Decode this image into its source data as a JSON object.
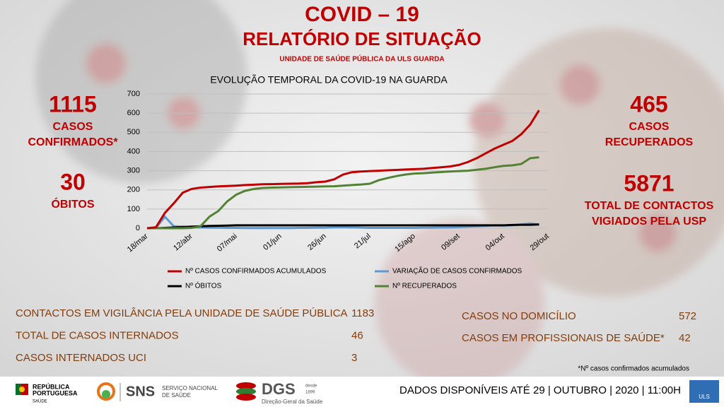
{
  "header": {
    "title": "COVID – 19",
    "subtitle": "RELATÓRIO DE SITUAÇÃO",
    "unit": "UNIDADE DE SAÚDE PÚBLICA DA ULS GUARDA"
  },
  "left_stats": [
    {
      "value": 1115,
      "lines": [
        "CASOS",
        "CONFIRMADOS*"
      ]
    },
    {
      "value": 30,
      "lines": [
        "ÓBITOS"
      ]
    }
  ],
  "right_stats": [
    {
      "value": 465,
      "lines": [
        "CASOS",
        "RECUPERADOS"
      ]
    },
    {
      "value": 5871,
      "lines": [
        "TOTAL DE CONTACTOS",
        "VIGIADOS PELA USP"
      ]
    }
  ],
  "chart_data": {
    "type": "line",
    "title": "EVOLUÇÃO TEMPORAL DA COVID-19 NA GUARDA",
    "x": [
      "18/mar",
      null,
      null,
      null,
      null,
      "12/abr",
      null,
      null,
      null,
      null,
      "07/mai",
      null,
      null,
      null,
      null,
      "01/jun",
      null,
      null,
      null,
      null,
      "26/jun",
      null,
      null,
      null,
      null,
      "21/jul",
      null,
      null,
      null,
      null,
      "15/ago",
      null,
      null,
      null,
      null,
      "09/set",
      null,
      null,
      null,
      null,
      "04/out",
      null,
      null,
      null,
      null,
      "29/out"
    ],
    "ylim": [
      0,
      700
    ],
    "yticks": [
      0,
      100,
      200,
      300,
      400,
      500,
      600,
      700
    ],
    "grid": true,
    "series": [
      {
        "name": "Nº CASOS CONFIRMADOS ACUMULADOS",
        "color": "#c00000",
        "values": [
          0,
          5,
          80,
          130,
          185,
          205,
          212,
          215,
          218,
          220,
          222,
          225,
          227,
          229,
          230,
          231,
          232,
          233,
          235,
          240,
          243,
          255,
          280,
          292,
          296,
          298,
          300,
          302,
          304,
          306,
          308,
          310,
          314,
          318,
          322,
          330,
          345,
          365,
          390,
          415,
          435,
          455,
          490,
          540,
          615,
          null
        ]
      },
      {
        "name": "VARIAÇÃO DE CASOS CONFIRMADOS",
        "color": "#5b9bd5",
        "values": [
          0,
          2,
          60,
          10,
          8,
          5,
          4,
          3,
          3,
          2,
          2,
          1,
          1,
          1,
          1,
          1,
          1,
          2,
          2,
          3,
          3,
          5,
          6,
          4,
          3,
          2,
          2,
          2,
          2,
          2,
          2,
          3,
          3,
          4,
          4,
          6,
          8,
          10,
          12,
          15,
          14,
          15,
          20,
          25,
          18,
          null
        ]
      },
      {
        "name": "Nº ÓBITOS",
        "color": "#000000",
        "values": [
          0,
          0,
          2,
          4,
          6,
          8,
          10,
          12,
          13,
          14,
          15,
          15,
          15,
          15,
          15,
          15,
          15,
          15,
          15,
          15,
          15,
          15,
          15,
          15,
          15,
          15,
          15,
          15,
          15,
          15,
          15,
          15,
          15,
          15,
          15,
          15,
          15,
          15,
          15,
          15,
          15,
          17,
          18,
          18,
          20,
          null
        ]
      },
      {
        "name": "Nº RECUPERADOS",
        "color": "#548235",
        "values": [
          0,
          0,
          0,
          0,
          0,
          2,
          10,
          60,
          90,
          140,
          175,
          195,
          205,
          210,
          212,
          213,
          214,
          215,
          216,
          217,
          218,
          219,
          222,
          225,
          228,
          232,
          250,
          262,
          272,
          280,
          285,
          287,
          290,
          293,
          296,
          298,
          300,
          305,
          310,
          318,
          325,
          328,
          335,
          365,
          370,
          null
        ]
      }
    ]
  },
  "table": {
    "left": [
      [
        "CONTACTOS EM VIGILÂNCIA PELA UNIDADE DE SAÚDE PÚBLICA",
        1183
      ],
      [
        "TOTAL DE CASOS INTERNADOS",
        46
      ],
      [
        "CASOS INTERNADOS UCI",
        3
      ]
    ],
    "right": [
      [
        "CASOS NO DOMICÍLIO",
        572
      ],
      [
        "CASOS EM PROFISSIONAIS DE SAÚDE*",
        42
      ]
    ]
  },
  "footnote": "*Nº casos confirmados acumulados",
  "footer": {
    "rep": [
      "REPÚBLICA",
      "PORTUGUESA"
    ],
    "saude": "SAÚDE",
    "sns": "SNS",
    "sns_full": [
      "SERVIÇO NACIONAL",
      "DE SAÚDE"
    ],
    "dgs": "DGS",
    "dgs_since": [
      "desde",
      "1899"
    ],
    "dgs_full": "Direção-Geral da Saúde",
    "date": "DADOS DISPONÍVEIS ATÉ 29 | OUTUBRO | 2020 | 11:00H",
    "uls": "ULS"
  }
}
